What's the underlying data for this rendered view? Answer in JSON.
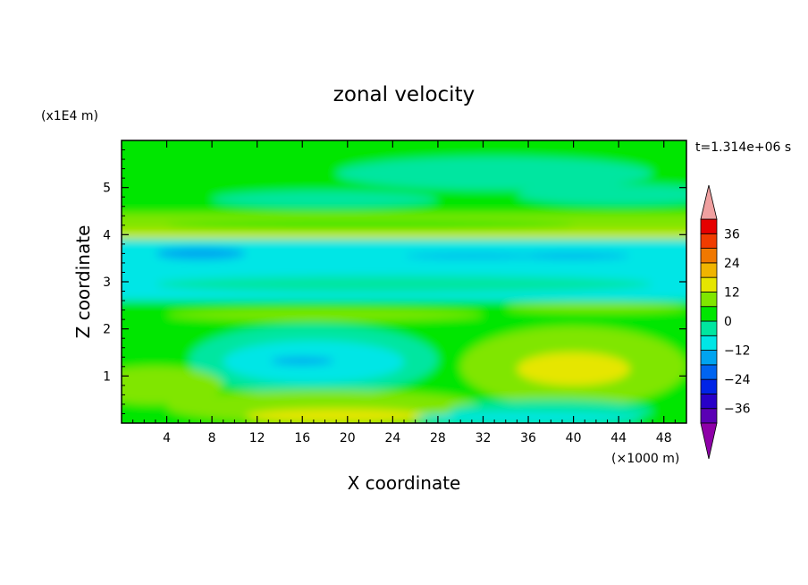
{
  "chart_data": {
    "type": "heatmap",
    "title": "zonal velocity",
    "xlabel": "X coordinate",
    "ylabel": "Z coordinate",
    "x_unit": "(×1000 m)",
    "y_unit": "(x1E4 m)",
    "time_label": "t=1.314e+06 s",
    "xlim": [
      0,
      50
    ],
    "ylim": [
      0,
      6
    ],
    "x_ticks": [
      4,
      8,
      12,
      16,
      20,
      24,
      28,
      32,
      36,
      40,
      44,
      48
    ],
    "y_ticks": [
      1,
      2,
      3,
      4,
      5
    ],
    "colorbar": {
      "levels": [
        -42,
        -36,
        -30,
        -24,
        -18,
        -12,
        -6,
        0,
        6,
        12,
        18,
        24,
        30,
        36,
        42
      ],
      "tick_labels": [
        "36",
        "24",
        "12",
        "0",
        "-12",
        "-24",
        "-36"
      ],
      "tick_values": [
        36,
        24,
        12,
        0,
        -12,
        -24,
        -36
      ],
      "colors": [
        "#8e00a8",
        "#5a00b4",
        "#2800c8",
        "#0024e6",
        "#0064f0",
        "#00a4f0",
        "#00e6e6",
        "#00e6a0",
        "#00e600",
        "#80e600",
        "#e6e600",
        "#f0b400",
        "#f07800",
        "#f03c00",
        "#e60000",
        "#f0a0a0"
      ],
      "extend": "both"
    },
    "features": [
      {
        "label": "upper layer",
        "x_range": [
          0,
          50
        ],
        "z_range": [
          4.4,
          6
        ],
        "value_range": [
          0,
          6
        ]
      },
      {
        "label": "green jet",
        "x_range": [
          0,
          50
        ],
        "z_range": [
          3.9,
          4.4
        ],
        "value_range": [
          6,
          12
        ]
      },
      {
        "label": "cyan band",
        "x_range": [
          0,
          50
        ],
        "z_range": [
          2.6,
          3.9
        ],
        "value_range": [
          -12,
          -6
        ]
      },
      {
        "label": "blue patch",
        "center": [
          7,
          3.6
        ],
        "value": -14
      },
      {
        "label": "cyan pool",
        "center": [
          17,
          1.3
        ],
        "value": -10
      },
      {
        "label": "near-surface yellow",
        "center": [
          19,
          0.15
        ],
        "value": 14
      },
      {
        "label": "yellow-green blob",
        "center": [
          40,
          1.15
        ],
        "value": 12
      }
    ]
  }
}
